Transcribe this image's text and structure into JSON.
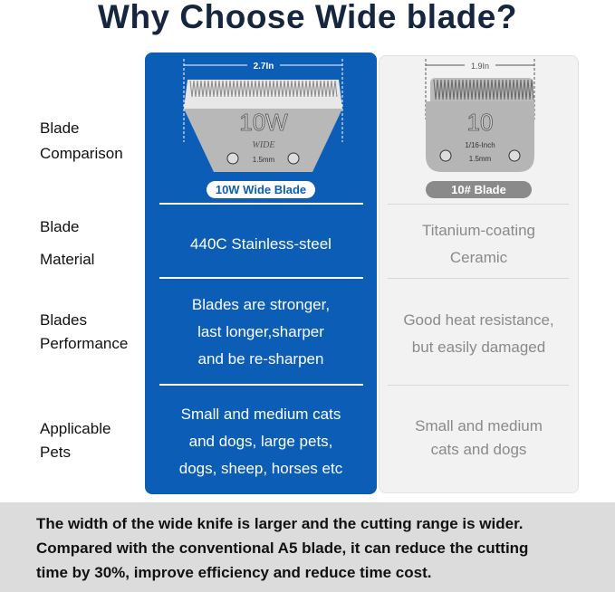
{
  "title": "Why Choose Wide blade?",
  "rows": [
    {
      "label_lines": [
        "Blade",
        "Comparison"
      ]
    },
    {
      "label_lines": [
        "Blade",
        "Material"
      ],
      "wide": [
        "440C Stainless-steel"
      ],
      "standard": [
        "Titanium-coating",
        "Ceramic"
      ]
    },
    {
      "label_lines": [
        "Blades",
        "Performance"
      ],
      "wide": [
        "Blades are stronger,",
        "last longer,sharper",
        "and be re-sharpen"
      ],
      "standard": [
        "Good heat resistance,",
        "but easily damaged"
      ]
    },
    {
      "label_lines": [
        "Applicable",
        "Pets"
      ],
      "wide": [
        "Small and medium cats",
        "and dogs, large pets,",
        "dogs, sheep, horses etc"
      ],
      "standard": [
        "Small and medium",
        "cats and dogs"
      ]
    }
  ],
  "wide_blade": {
    "width": "2.7In",
    "number": "10W",
    "wide_text": "WIDE",
    "size": "1.5mm",
    "name": "10W Wide Blade"
  },
  "standard_blade": {
    "width": "1.9In",
    "number": "10",
    "inch": "1/16-Inch",
    "size": "1.5mm",
    "name": "10# Blade"
  },
  "footer": [
    "The width of the wide knife is larger and the cutting range is wider.",
    "Compared with the conventional A5 blade, it can reduce the cutting",
    "time by 30%, improve efficiency and reduce time cost."
  ],
  "colors": {
    "title": "#16263f",
    "wide_column": "#0b5db6",
    "standard_column": "#f2f2f2",
    "footer_band": "#dcdcdc"
  }
}
